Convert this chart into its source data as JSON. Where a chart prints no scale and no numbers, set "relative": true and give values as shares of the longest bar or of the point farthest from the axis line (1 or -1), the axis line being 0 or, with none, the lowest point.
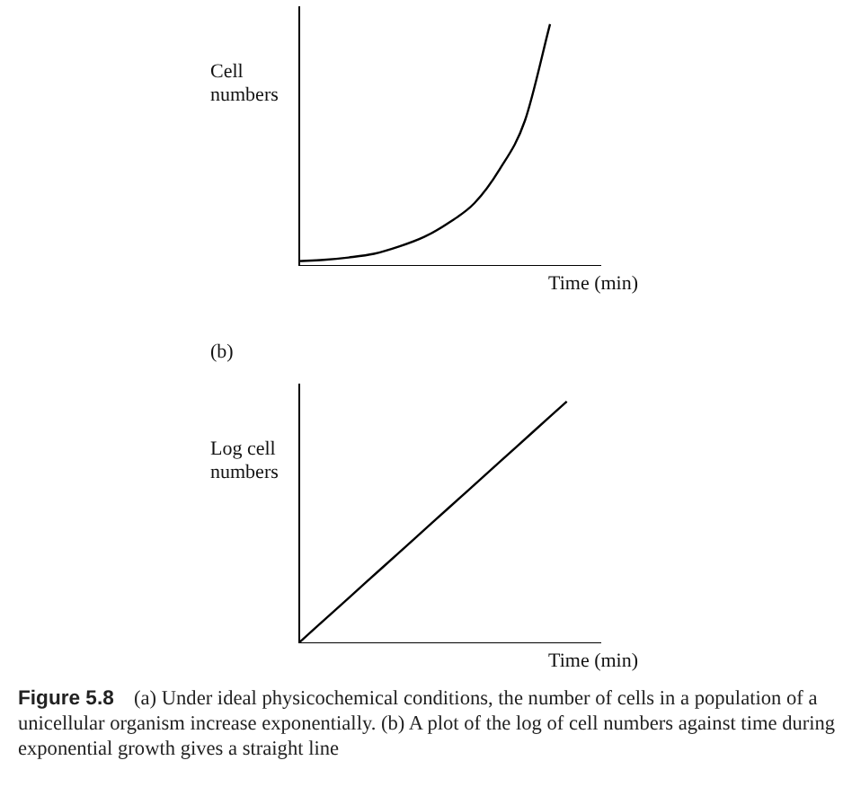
{
  "chart_data": [
    {
      "type": "line",
      "relative": true,
      "ylabel": "Cell numbers",
      "xlabel": "Time (min)",
      "categories": [
        null,
        null,
        null,
        null,
        null,
        null,
        null,
        null,
        null,
        null,
        null,
        null,
        null
      ],
      "grid": false,
      "legend": false,
      "marker": "none",
      "line_style": "solid",
      "series": [
        {
          "color": "#000000",
          "values": [
            0.02,
            0.025,
            0.035,
            0.05,
            0.08,
            0.12,
            0.18,
            0.26,
            0.4,
            0.6,
            1.0,
            null,
            null
          ]
        }
      ]
    },
    {
      "type": "line",
      "relative": true,
      "title": "(b)",
      "ylabel": "Log cell numbers",
      "xlabel": "Time (min)",
      "categories": [
        null,
        null,
        null,
        null,
        null,
        null,
        null,
        null,
        null,
        null
      ],
      "grid": false,
      "legend": false,
      "marker": "none",
      "line_style": "solid",
      "series": [
        {
          "color": "#000000",
          "values": [
            0,
            0.125,
            0.25,
            0.375,
            0.5,
            0.625,
            0.75,
            0.875,
            1.0,
            null
          ]
        }
      ],
      "annotations": [
        "Figure 5.8",
        "(a) Under ideal physicochemical conditions, the number of cells in a population of a unicellular organism increase exponentially. (b) A plot of the log of cell numbers against time during exponential growth gives a straight line"
      ]
    }
  ]
}
